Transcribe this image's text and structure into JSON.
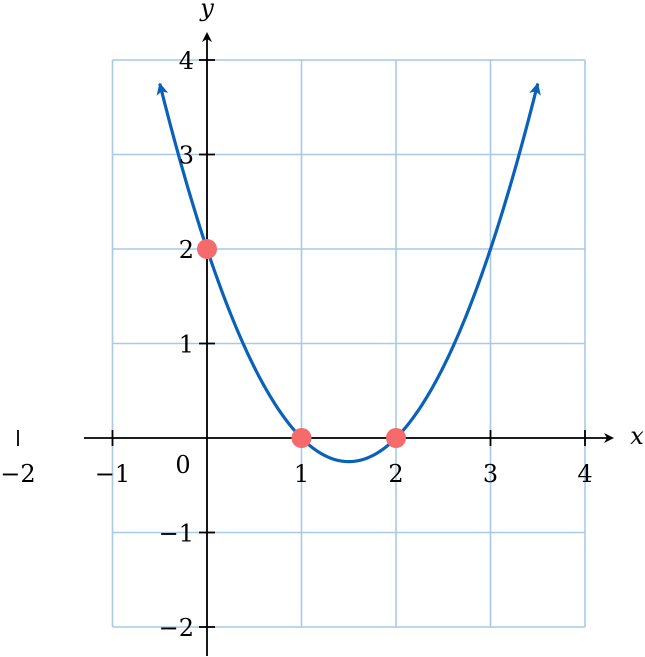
{
  "chart_data": {
    "type": "line",
    "title": "",
    "xlabel": "x",
    "ylabel": "y",
    "xlim": [
      -1,
      4
    ],
    "ylim": [
      -2,
      4
    ],
    "grid": true,
    "x_ticks": [
      {
        "value": -2,
        "label": "−2"
      },
      {
        "value": -1,
        "label": "−1"
      },
      {
        "value": 0,
        "label": "0"
      },
      {
        "value": 1,
        "label": "1"
      },
      {
        "value": 2,
        "label": "2"
      },
      {
        "value": 3,
        "label": "3"
      },
      {
        "value": 4,
        "label": "4"
      }
    ],
    "y_ticks": [
      {
        "value": -2,
        "label": "−2"
      },
      {
        "value": -1,
        "label": "−1"
      },
      {
        "value": 1,
        "label": "1"
      },
      {
        "value": 2,
        "label": "2"
      },
      {
        "value": 3,
        "label": "3"
      },
      {
        "value": 4,
        "label": "4"
      }
    ],
    "curve": {
      "expression": "y = (x - 1)(x - 2)",
      "x_range": [
        -0.5,
        3.5
      ],
      "color": "#0a62b8",
      "arrows_at_ends": true
    },
    "points": [
      {
        "x": 0,
        "y": 2
      },
      {
        "x": 1,
        "y": 0
      },
      {
        "x": 2,
        "y": 0
      }
    ],
    "point_color": "#f56b6b"
  }
}
